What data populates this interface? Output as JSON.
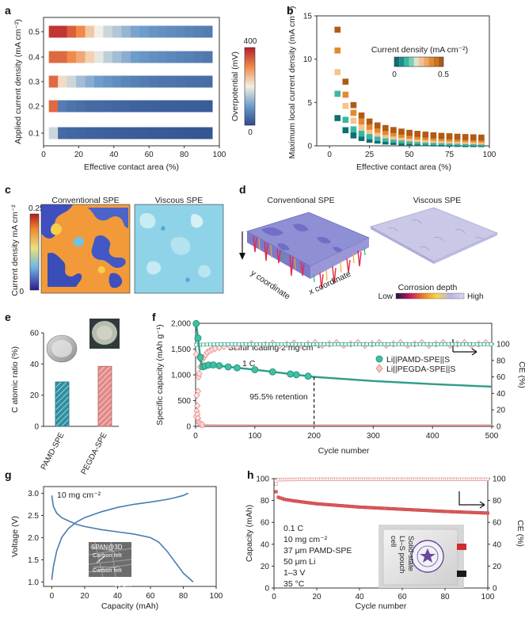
{
  "panel_labels": [
    "a",
    "b",
    "c",
    "d",
    "e",
    "f",
    "g",
    "h"
  ],
  "colors": {
    "teal_dark": "#0f6e6e",
    "teal": "#3ab7a4",
    "peach": "#f6c28e",
    "orange": "#e3892f",
    "brown": "#b05a14",
    "pink_line": "#e58a88",
    "red_cap": "#e05a5a",
    "blue_line": "#4a7ab0"
  },
  "chart_data": [
    {
      "panel": "a",
      "type": "heatmap",
      "xlabel": "Effective contact area (%)",
      "ylabel": "Applied current density (mA cm⁻²)",
      "x_ticks": [
        "0",
        "20",
        "40",
        "60",
        "80",
        "100"
      ],
      "xlim": [
        0,
        100
      ],
      "y_categories": [
        "0.5",
        "0.4",
        "0.3",
        "0.2",
        "0.1"
      ],
      "colorbar": {
        "label": "Overpotential (mV)",
        "min_label": "0",
        "max_label": "400",
        "min": 0,
        "max": 400
      },
      "rows": [
        {
          "j": "0.5",
          "overpotential": [
            380,
            380,
            340,
            300,
            240,
            200,
            170,
            150,
            130,
            110,
            100,
            90,
            85,
            80,
            75,
            70,
            65,
            60
          ]
        },
        {
          "j": "0.4",
          "overpotential": [
            330,
            330,
            300,
            270,
            230,
            190,
            160,
            140,
            120,
            100,
            92,
            85,
            80,
            75,
            70,
            65,
            60,
            55
          ]
        },
        {
          "j": "0.3",
          "overpotential": [
            330,
            220,
            170,
            140,
            120,
            100,
            90,
            80,
            72,
            65,
            60,
            56,
            52,
            50,
            48,
            46,
            44,
            42
          ]
        },
        {
          "j": "0.2",
          "overpotential": [
            330,
            60,
            50,
            45,
            40,
            38,
            36,
            34,
            32,
            30,
            28,
            27,
            26,
            25,
            24,
            23,
            22,
            21
          ]
        },
        {
          "j": "0.1",
          "overpotential": [
            170,
            40,
            35,
            32,
            30,
            28,
            26,
            24,
            22,
            21,
            20,
            19,
            18,
            17,
            16,
            15,
            14,
            13
          ]
        }
      ]
    },
    {
      "panel": "b",
      "type": "scatter",
      "xlabel": "Effective contact area (%)",
      "ylabel": "Maximum local current density (mA cm⁻²)",
      "x_ticks": [
        "0",
        "25",
        "50",
        "75",
        "100"
      ],
      "y_ticks": [
        "0",
        "5",
        "10",
        "15"
      ],
      "xlim": [
        -8,
        100
      ],
      "ylim": [
        0,
        15
      ],
      "legend_title": "Current density (mA cm⁻²)",
      "legend_min": "0",
      "legend_max": "0.5",
      "x": [
        5,
        10,
        15,
        20,
        25,
        30,
        35,
        40,
        45,
        50,
        55,
        60,
        65,
        70,
        75,
        80,
        85,
        90,
        95
      ],
      "series": [
        {
          "name": "0.1",
          "values": [
            3.2,
            1.8,
            1.2,
            0.9,
            0.7,
            0.6,
            0.5,
            0.45,
            0.4,
            0.35,
            0.32,
            0.3,
            0.28,
            0.26,
            0.24,
            0.22,
            0.2,
            0.2,
            0.2
          ]
        },
        {
          "name": "0.2",
          "values": [
            6.0,
            3.0,
            1.9,
            1.4,
            1.1,
            0.9,
            0.8,
            0.7,
            0.62,
            0.55,
            0.5,
            0.46,
            0.43,
            0.4,
            0.38,
            0.36,
            0.34,
            0.33,
            0.32
          ]
        },
        {
          "name": "0.3",
          "values": [
            8.5,
            4.6,
            2.9,
            2.1,
            1.7,
            1.4,
            1.2,
            1.05,
            0.95,
            0.85,
            0.78,
            0.72,
            0.68,
            0.64,
            0.6,
            0.57,
            0.55,
            0.53,
            0.5
          ]
        },
        {
          "name": "0.4",
          "values": [
            11.0,
            5.9,
            3.8,
            2.8,
            2.2,
            1.85,
            1.6,
            1.42,
            1.28,
            1.16,
            1.07,
            1.0,
            0.94,
            0.89,
            0.85,
            0.81,
            0.78,
            0.75,
            0.72
          ]
        },
        {
          "name": "0.5",
          "values": [
            13.4,
            7.4,
            4.7,
            3.5,
            2.8,
            2.35,
            2.05,
            1.82,
            1.64,
            1.5,
            1.38,
            1.29,
            1.21,
            1.15,
            1.1,
            1.05,
            1.01,
            0.98,
            0.95
          ]
        }
      ]
    },
    {
      "panel": "e",
      "type": "bar",
      "ylabel": "C atomic ratio (%)",
      "categories": [
        "PAMD-SPE",
        "PEGDA-SPE"
      ],
      "values": [
        28.5,
        38.5
      ],
      "y_ticks": [
        "0",
        "20",
        "40",
        "60"
      ],
      "ylim": [
        0,
        60
      ]
    },
    {
      "panel": "f",
      "type": "scatter",
      "xlabel": "Cycle number",
      "ylabel": "Specific capacity (mAh g⁻¹)",
      "ylabel_right": "CE (%)",
      "x_ticks": [
        "0",
        "100",
        "200",
        "300",
        "400",
        "500"
      ],
      "y_ticks": [
        "0",
        "500",
        "1,000",
        "1,500",
        "2,000"
      ],
      "y2_ticks": [
        "0",
        "20",
        "40",
        "60",
        "80",
        "100"
      ],
      "xlim": [
        0,
        500
      ],
      "ylim": [
        0,
        2000
      ],
      "y2lim": [
        0,
        125
      ],
      "annotations": [
        "Sulfur loading 2 mg cm⁻²",
        "1 C",
        "95.5% retention"
      ],
      "retention_marker_cycle": 200,
      "legend": [
        "Li||PAMD-SPE||S",
        "Li||PEGDA-SPE||S"
      ],
      "series": [
        {
          "name": "Li||PAMD-SPE||S capacity",
          "x": [
            1,
            10,
            25,
            50,
            100,
            150,
            200,
            250,
            300,
            350,
            400,
            450,
            500
          ],
          "values": [
            1995,
            1150,
            1200,
            1160,
            1100,
            1030,
            960,
            920,
            880,
            850,
            820,
            795,
            770
          ]
        },
        {
          "name": "Li||PAMD-SPE||S CE",
          "x": [
            1,
            50,
            100,
            200,
            300,
            400,
            500
          ],
          "values": [
            99,
            99.6,
            99.6,
            99.6,
            99.6,
            99.6,
            99.6
          ]
        },
        {
          "name": "Li||PEGDA-SPE||S capacity",
          "x": [
            1,
            2,
            3,
            5,
            10,
            50,
            100,
            200,
            300,
            400,
            500
          ],
          "values": [
            1400,
            600,
            230,
            80,
            30,
            25,
            25,
            25,
            25,
            25,
            25
          ]
        },
        {
          "name": "Li||PEGDA-SPE||S CE",
          "x": [
            1,
            3,
            5,
            10,
            20,
            30,
            50,
            100,
            200,
            300,
            400,
            500
          ],
          "values": [
            12,
            25,
            60,
            80,
            90,
            94,
            97,
            99,
            100,
            100,
            100,
            100
          ]
        }
      ]
    },
    {
      "panel": "g",
      "type": "line",
      "xlabel": "Capacity (mAh)",
      "ylabel": "Voltage (V)",
      "x_ticks": [
        "0",
        "20",
        "40",
        "60",
        "80",
        "100"
      ],
      "y_ticks": [
        "1.0",
        "1.5",
        "2.0",
        "2.5",
        "3.0"
      ],
      "xlim": [
        -5,
        100
      ],
      "ylim": [
        0.9,
        3.15
      ],
      "annotation": "10 mg cm⁻²",
      "inset_labels": [
        "SPAN@3D",
        "Carbon felt",
        "Carbon felt",
        "50 μm"
      ],
      "series": [
        {
          "name": "discharge",
          "x": [
            0,
            1,
            3,
            6,
            10,
            15,
            20,
            30,
            40,
            50,
            60,
            65,
            70,
            75,
            80,
            86
          ],
          "values": [
            2.95,
            2.7,
            2.55,
            2.45,
            2.38,
            2.3,
            2.25,
            2.18,
            2.13,
            2.08,
            2.0,
            1.9,
            1.7,
            1.45,
            1.2,
            1.0
          ]
        },
        {
          "name": "charge",
          "x": [
            0,
            1,
            3,
            6,
            10,
            15,
            20,
            30,
            40,
            50,
            60,
            70,
            75,
            80,
            83
          ],
          "values": [
            1.05,
            1.35,
            1.7,
            2.0,
            2.2,
            2.35,
            2.45,
            2.58,
            2.68,
            2.75,
            2.8,
            2.86,
            2.9,
            2.95,
            3.0
          ]
        }
      ]
    },
    {
      "panel": "h",
      "type": "scatter",
      "xlabel": "Cycle number",
      "ylabel": "Capacity (mAh)",
      "ylabel_right": "CE (%)",
      "x_ticks": [
        "0",
        "20",
        "40",
        "60",
        "80",
        "100"
      ],
      "y_ticks": [
        "0",
        "20",
        "40",
        "60",
        "80",
        "100"
      ],
      "y2_ticks": [
        "0",
        "20",
        "40",
        "60",
        "80",
        "100"
      ],
      "xlim": [
        0,
        100
      ],
      "ylim": [
        0,
        100
      ],
      "conditions": [
        "0.1 C",
        "10 mg cm⁻²",
        "37 μm PAMD-SPE",
        "50 μm Li",
        "1–3 V",
        "35 °C"
      ],
      "photo_label": [
        "Solid-state",
        "Li–S pouch",
        "cell"
      ],
      "series": [
        {
          "name": "Capacity",
          "x": [
            1,
            2,
            5,
            10,
            20,
            40,
            60,
            80,
            100
          ],
          "values": [
            88,
            83,
            81,
            79.5,
            77,
            74,
            72,
            70,
            68.5
          ]
        },
        {
          "name": "CE",
          "x": [
            1,
            2,
            5,
            10,
            20,
            40,
            60,
            80,
            100
          ],
          "values": [
            95,
            99,
            99.2,
            99.3,
            99.4,
            99.4,
            99.4,
            99.4,
            99.4
          ]
        }
      ]
    }
  ],
  "maps": {
    "c_title_left": "Conventional SPE",
    "c_title_right": "Viscous SPE",
    "c_ylabel": "Current density mA cm⁻²",
    "c_cbar_max": "0.25",
    "c_cbar_min": "0",
    "d_title_left": "Conventional SPE",
    "d_title_right": "Viscous SPE",
    "d_y_axis": "y coordinate",
    "d_x_axis": "x coordinate",
    "d_legend_title": "Corrosion depth",
    "d_legend_low": "Low",
    "d_legend_high": "High"
  }
}
